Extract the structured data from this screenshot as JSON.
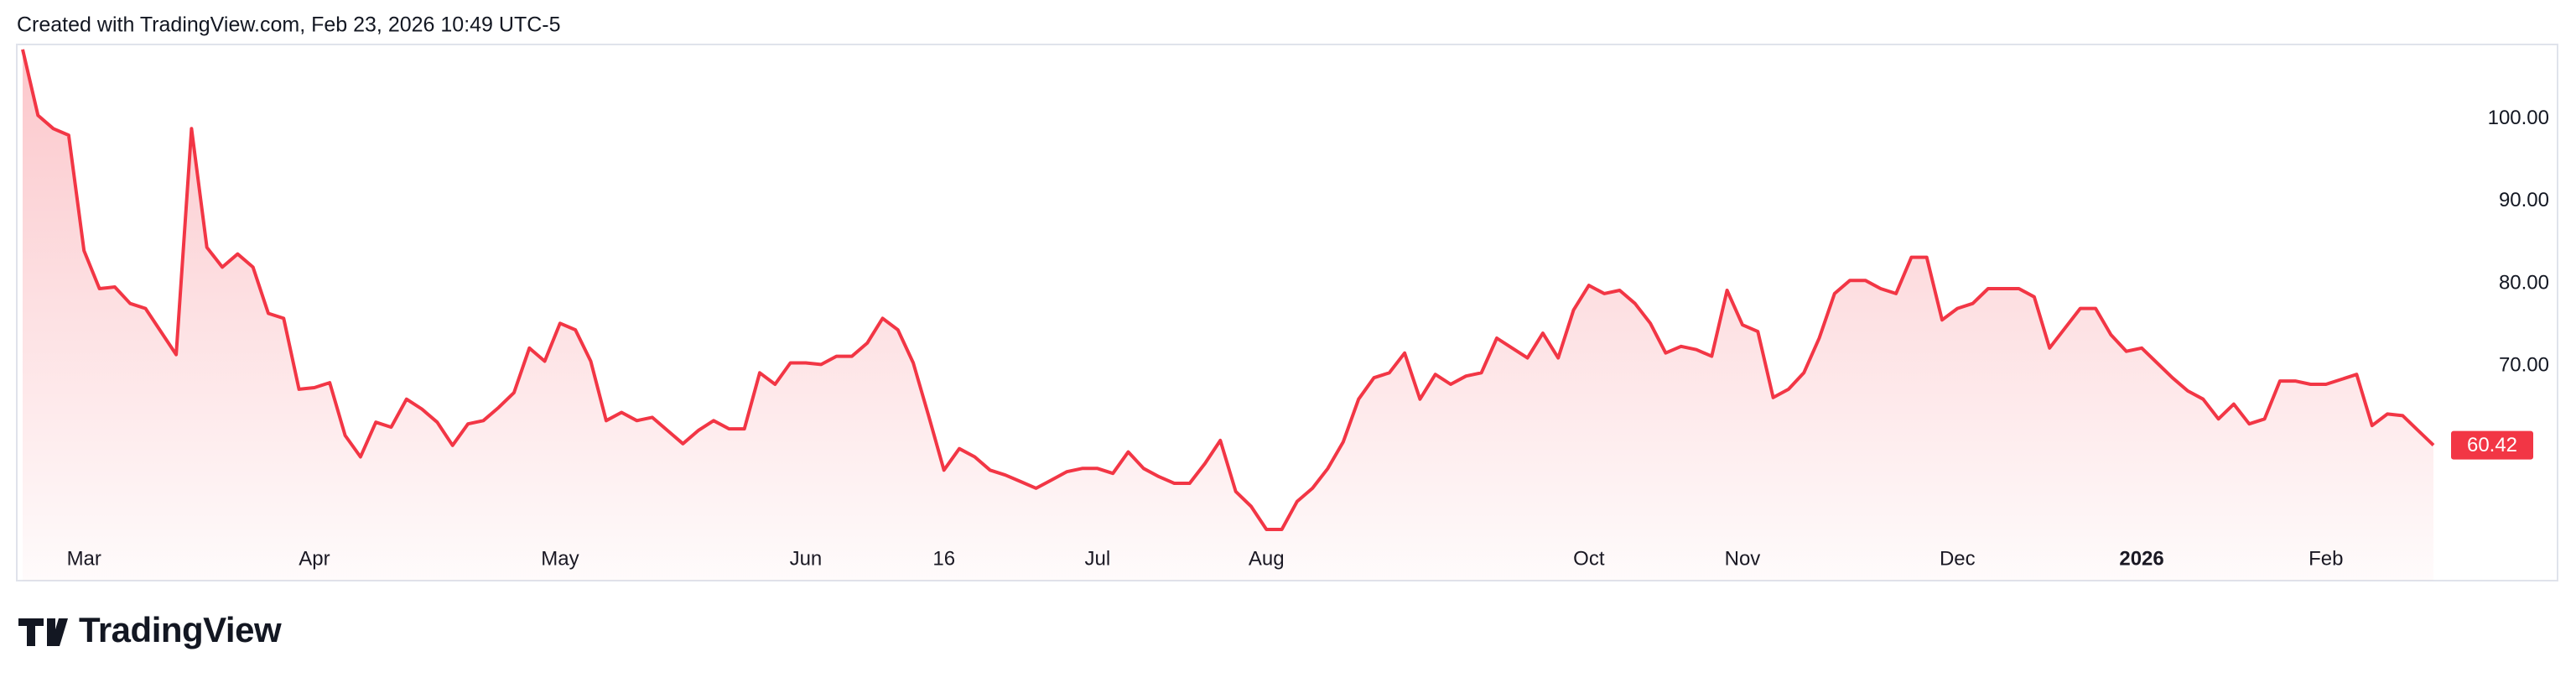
{
  "header": {
    "text": "Created with TradingView.com, Feb 23, 2026 10:49 UTC-5"
  },
  "footer": {
    "logo": "TradingView"
  },
  "chart_data": {
    "type": "line",
    "color": "#f23645",
    "grid": false,
    "categories": [
      null,
      null,
      null,
      null,
      "Mar",
      null,
      null,
      null,
      null,
      null,
      null,
      null,
      null,
      null,
      null,
      null,
      null,
      null,
      null,
      "Apr",
      null,
      null,
      null,
      null,
      null,
      null,
      null,
      null,
      null,
      null,
      null,
      null,
      null,
      null,
      null,
      "May",
      null,
      null,
      null,
      null,
      null,
      null,
      null,
      null,
      null,
      null,
      null,
      null,
      null,
      null,
      null,
      "Jun",
      null,
      null,
      null,
      null,
      null,
      null,
      null,
      null,
      "16",
      null,
      null,
      null,
      null,
      null,
      null,
      null,
      null,
      null,
      "Jul",
      null,
      null,
      null,
      null,
      null,
      null,
      null,
      null,
      null,
      null,
      "Aug",
      null,
      null,
      null,
      null,
      null,
      null,
      null,
      null,
      null,
      null,
      null,
      null,
      null,
      null,
      null,
      null,
      null,
      null,
      null,
      null,
      "Oct",
      null,
      null,
      null,
      null,
      null,
      null,
      null,
      null,
      null,
      "Nov",
      null,
      null,
      null,
      null,
      null,
      null,
      null,
      null,
      null,
      null,
      null,
      null,
      null,
      "Dec",
      null,
      null,
      null,
      null,
      null,
      null,
      null,
      null,
      null,
      null,
      null,
      "2026",
      null,
      null,
      null,
      null,
      null,
      null,
      null,
      null,
      null,
      null,
      null,
      "Feb",
      null,
      null,
      null,
      null,
      null,
      null,
      null
    ],
    "values": [
      108.4,
      100.4,
      98.8,
      98,
      84,
      79.4,
      79.6,
      77.6,
      77,
      74.2,
      71.4,
      98.8,
      84.4,
      82,
      83.6,
      82,
      76.4,
      75.8,
      67.2,
      67.4,
      68,
      61.6,
      59,
      63.2,
      62.6,
      66,
      64.8,
      63.2,
      60.4,
      63,
      63.4,
      65,
      66.8,
      72.2,
      70.6,
      75.2,
      74.4,
      70.6,
      63.4,
      64.4,
      63.4,
      63.8,
      62.2,
      60.6,
      62.2,
      63.4,
      62.4,
      62.4,
      69.2,
      67.8,
      70.4,
      70.4,
      70.2,
      71.2,
      71.2,
      72.8,
      75.8,
      74.4,
      70.4,
      64,
      57.4,
      60,
      59,
      57.4,
      56.8,
      56,
      55.2,
      56.2,
      57.2,
      57.6,
      57.6,
      57,
      59.6,
      57.6,
      56.6,
      55.8,
      55.8,
      58.2,
      61,
      54.8,
      53,
      50.2,
      50.2,
      53.6,
      55.2,
      57.6,
      60.8,
      66,
      68.6,
      69.2,
      71.6,
      66,
      69,
      67.8,
      68.8,
      69.2,
      73.4,
      72.2,
      71,
      74,
      71,
      76.8,
      79.8,
      78.8,
      79.2,
      77.6,
      75.2,
      71.6,
      72.4,
      72,
      71.2,
      79.2,
      75,
      74.2,
      66.2,
      67.2,
      69.2,
      73.4,
      78.8,
      80.4,
      80.4,
      79.4,
      78.8,
      83.2,
      83.2,
      75.6,
      77,
      77.6,
      79.4,
      79.4,
      79.4,
      78.4,
      72.2,
      74.6,
      77,
      77,
      73.8,
      71.8,
      72.2,
      70.4,
      68.6,
      67,
      66,
      63.6,
      65.4,
      63,
      63.6,
      68.2,
      68.2,
      67.8,
      67.8,
      68.4,
      69,
      62.8,
      64.2,
      64,
      62.2,
      60.42
    ],
    "ylim": [
      44,
      109
    ],
    "yticks": [
      {
        "value": 70,
        "label": "70.00"
      },
      {
        "value": 80,
        "label": "80.00"
      },
      {
        "value": 90,
        "label": "90.00"
      },
      {
        "value": 100,
        "label": "100.00"
      }
    ]
  }
}
